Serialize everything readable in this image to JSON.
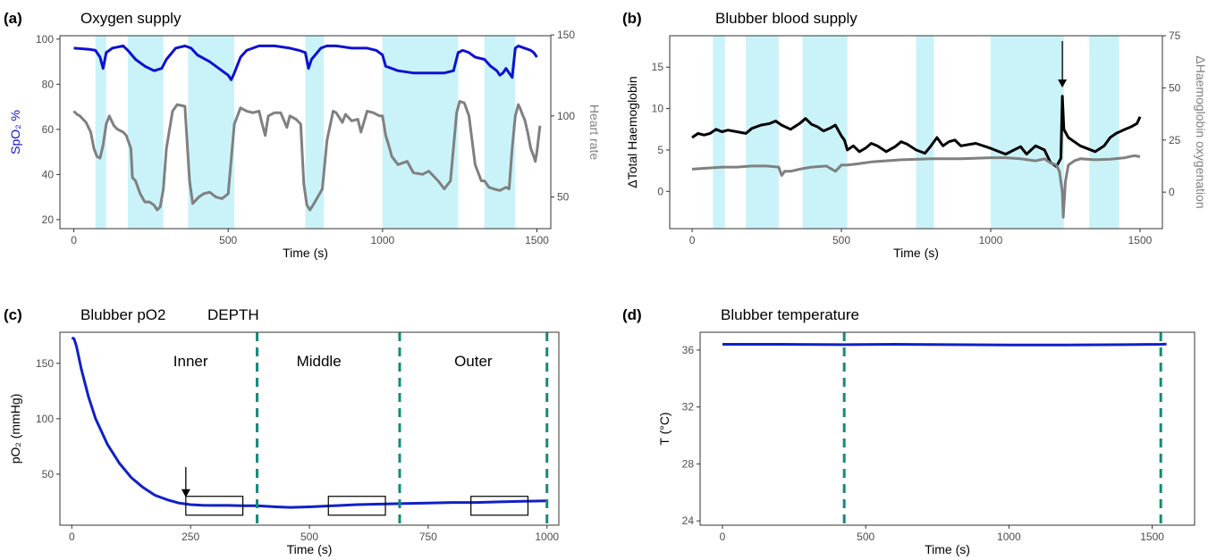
{
  "colors": {
    "spo2": "#1010d0",
    "hr": "#808080",
    "dive_shade": "#c9f3f8",
    "hb_total": "#000000",
    "hb_oxy": "#808080",
    "blubber_line": "#1020c8",
    "dashed": "#16897a"
  },
  "chart_data": [
    {
      "id": "a",
      "type": "line",
      "panel_label": "(a)",
      "title": "Oxygen supply",
      "xlabel": "Time (s)",
      "ylabel": "SpO₂ %",
      "y2label": "Heart rate",
      "xlim": [
        -45,
        1545
      ],
      "ylim": [
        16,
        101.5
      ],
      "y2lim": [
        30.5,
        149.5
      ],
      "xticks": [
        0,
        500,
        1000,
        1500
      ],
      "yticks": [
        20,
        40,
        60,
        80,
        100
      ],
      "y2ticks": [
        50,
        100,
        150
      ],
      "dive_periods": [
        [
          70,
          105
        ],
        [
          175,
          290
        ],
        [
          370,
          520
        ],
        [
          750,
          810
        ],
        [
          1000,
          1245
        ],
        [
          1330,
          1430
        ]
      ],
      "series": [
        {
          "axis": "left",
          "color_key": "spo2",
          "x": [
            0,
            50,
            70,
            85,
            95,
            105,
            125,
            160,
            175,
            200,
            230,
            260,
            285,
            300,
            330,
            360,
            380,
            400,
            440,
            480,
            500,
            510,
            520,
            540,
            560,
            600,
            650,
            700,
            730,
            750,
            760,
            770,
            800,
            820,
            850,
            900,
            950,
            980,
            1000,
            1010,
            1050,
            1100,
            1150,
            1200,
            1230,
            1245,
            1260,
            1280,
            1300,
            1330,
            1350,
            1370,
            1380,
            1390,
            1400,
            1420,
            1430,
            1440,
            1460,
            1480,
            1490,
            1500
          ],
          "y": [
            96,
            95.5,
            95,
            92,
            87,
            94,
            96,
            97,
            95,
            91,
            88,
            86,
            87,
            91,
            96,
            97,
            96,
            93,
            90,
            86,
            84,
            82,
            85,
            92,
            95,
            97,
            97,
            96,
            95,
            94,
            87,
            91,
            96,
            97,
            97,
            96,
            96,
            95,
            93,
            88,
            86,
            85,
            85,
            85,
            86,
            94,
            95,
            94,
            92,
            91,
            88,
            86,
            84,
            85,
            87,
            83,
            96,
            97,
            96,
            95,
            94,
            92
          ]
        },
        {
          "axis": "right",
          "color_key": "hr",
          "x": [
            0,
            10,
            20,
            40,
            55,
            65,
            75,
            85,
            95,
            105,
            115,
            130,
            140,
            160,
            170,
            185,
            190,
            200,
            215,
            230,
            245,
            260,
            270,
            280,
            290,
            300,
            320,
            335,
            360,
            375,
            385,
            395,
            405,
            420,
            440,
            460,
            480,
            500,
            520,
            540,
            560,
            580,
            600,
            610,
            620,
            630,
            650,
            670,
            690,
            700,
            720,
            735,
            745,
            755,
            765,
            775,
            790,
            805,
            820,
            840,
            850,
            870,
            880,
            900,
            920,
            930,
            950,
            970,
            990,
            1000,
            1010,
            1020,
            1030,
            1050,
            1080,
            1100,
            1130,
            1150,
            1180,
            1200,
            1220,
            1240,
            1250,
            1265,
            1280,
            1300,
            1320,
            1330,
            1345,
            1360,
            1380,
            1400,
            1410,
            1420,
            1430,
            1440,
            1445,
            1455,
            1460,
            1470,
            1480,
            1490,
            1495,
            1500,
            1505,
            1510
          ],
          "y": [
            103,
            101,
            100,
            96,
            90,
            80,
            75,
            74,
            82,
            95,
            100,
            94,
            92,
            90,
            88,
            80,
            62,
            60,
            52,
            47,
            47,
            45,
            42,
            44,
            55,
            80,
            103,
            107,
            106,
            60,
            46,
            48,
            50,
            52,
            53,
            50,
            49,
            52,
            95,
            105,
            103,
            102,
            103,
            95,
            88,
            100,
            102,
            102,
            93,
            100,
            98,
            95,
            58,
            45,
            42,
            45,
            50,
            55,
            85,
            103,
            102,
            96,
            101,
            97,
            98,
            90,
            103,
            102,
            100,
            100,
            88,
            82,
            75,
            70,
            72,
            65,
            64,
            66,
            60,
            55,
            60,
            102,
            109,
            108,
            100,
            70,
            60,
            60,
            56,
            55,
            54,
            56,
            55,
            80,
            100,
            107,
            105,
            100,
            98,
            90,
            80,
            75,
            72,
            78,
            86,
            94
          ]
        }
      ]
    },
    {
      "id": "b",
      "type": "line",
      "panel_label": "(b)",
      "title": "Blubber blood supply",
      "xlabel": "Time (s)",
      "ylabel": "ΔTotal Haemoglobin",
      "y2label": "ΔHaemoglobin oxygenation",
      "xlim": [
        -75,
        1575
      ],
      "ylim": [
        -4.5,
        18.8
      ],
      "y2lim": [
        -17.5,
        75
      ],
      "xticks": [
        0,
        500,
        1000,
        1500
      ],
      "yticks": [
        0,
        5,
        10,
        15
      ],
      "y2ticks": [
        0,
        25,
        50,
        75
      ],
      "dive_periods": [
        [
          70,
          110
        ],
        [
          180,
          290
        ],
        [
          370,
          520
        ],
        [
          750,
          810
        ],
        [
          1000,
          1245
        ],
        [
          1330,
          1430
        ]
      ],
      "arrow_at_x": 1240,
      "series": [
        {
          "axis": "left",
          "color_key": "hb_total",
          "x": [
            0,
            20,
            40,
            60,
            80,
            100,
            120,
            150,
            180,
            200,
            230,
            260,
            280,
            300,
            330,
            360,
            380,
            400,
            420,
            440,
            460,
            480,
            500,
            510,
            520,
            540,
            560,
            580,
            600,
            620,
            650,
            680,
            700,
            720,
            750,
            780,
            800,
            820,
            840,
            860,
            880,
            900,
            950,
            1000,
            1050,
            1100,
            1120,
            1150,
            1180,
            1200,
            1220,
            1235,
            1240,
            1245,
            1260,
            1280,
            1300,
            1350,
            1380,
            1400,
            1420,
            1450,
            1470,
            1490,
            1500
          ],
          "y": [
            6.5,
            7,
            6.8,
            7,
            7.5,
            7.2,
            7.4,
            7.2,
            7,
            7.6,
            8,
            8.2,
            8.5,
            8,
            7.5,
            8.2,
            8.8,
            8.1,
            7.8,
            7.3,
            7.6,
            8,
            6.7,
            6.2,
            5,
            5.5,
            4.8,
            5.2,
            5.8,
            5.5,
            4.8,
            5.4,
            6,
            5.7,
            5,
            4.6,
            5.5,
            6.5,
            5.5,
            6,
            6.2,
            5.5,
            5.8,
            5.2,
            4.5,
            5.4,
            4.5,
            5.5,
            5,
            3.5,
            3,
            4,
            11.5,
            7.5,
            6.5,
            6,
            5.5,
            4.8,
            5.5,
            6.5,
            7,
            7.5,
            7.8,
            8.2,
            9
          ]
        },
        {
          "axis": "right",
          "color_key": "hb_oxy",
          "x": [
            0,
            50,
            100,
            150,
            200,
            250,
            290,
            300,
            310,
            330,
            360,
            400,
            450,
            480,
            500,
            520,
            550,
            600,
            700,
            800,
            900,
            1000,
            1050,
            1100,
            1150,
            1180,
            1200,
            1220,
            1230,
            1240,
            1243,
            1250,
            1260,
            1280,
            1300,
            1350,
            1400,
            1450,
            1480,
            1500
          ],
          "y": [
            11,
            11.5,
            12,
            12,
            12.5,
            12.5,
            12,
            8,
            10,
            10,
            11,
            12,
            12.5,
            10,
            13,
            13,
            13.5,
            14.5,
            15.5,
            16,
            16,
            16.5,
            16.5,
            16,
            15,
            16,
            14,
            13,
            10,
            0,
            -12,
            5,
            13,
            15,
            16,
            15.5,
            15.8,
            16.5,
            17.5,
            17
          ]
        }
      ]
    },
    {
      "id": "c",
      "type": "line",
      "panel_label": "(c)",
      "title": "Blubber pO2",
      "subtitle": "DEPTH",
      "xlabel": "Time (s)",
      "ylabel": "pO₂ (mmHg)",
      "xlim": [
        -25,
        1025
      ],
      "ylim": [
        4,
        178
      ],
      "xticks": [
        0,
        250,
        500,
        750,
        1000
      ],
      "yticks": [
        50,
        100,
        150
      ],
      "depth_lines_x": [
        390,
        690,
        1000
      ],
      "depth_labels": [
        {
          "text": "Inner",
          "x": 250
        },
        {
          "text": "Middle",
          "x": 520
        },
        {
          "text": "Outer",
          "x": 845
        }
      ],
      "boxes": [
        [
          240,
          360
        ],
        [
          540,
          660
        ],
        [
          840,
          960
        ]
      ],
      "arrow_at_x": 240,
      "series": [
        {
          "color_key": "blubber_line",
          "x": [
            0,
            5,
            10,
            20,
            35,
            50,
            75,
            100,
            125,
            150,
            175,
            200,
            225,
            250,
            275,
            300,
            330,
            360,
            390,
            410,
            430,
            460,
            500,
            550,
            600,
            650,
            700,
            750,
            800,
            850,
            900,
            950,
            1000
          ],
          "y": [
            173,
            172,
            165,
            145,
            120,
            100,
            77,
            60,
            47,
            38,
            31,
            27,
            24,
            22.5,
            22,
            21.8,
            21.8,
            21.5,
            21.5,
            21,
            20.5,
            20,
            20.5,
            21.5,
            22.5,
            23,
            23.5,
            24,
            24.5,
            24.5,
            25,
            25.5,
            26
          ]
        }
      ]
    },
    {
      "id": "d",
      "type": "line",
      "panel_label": "(d)",
      "title": "Blubber temperature",
      "xlabel": "Time (s)",
      "ylabel": "T (°C)",
      "xlim": [
        -78,
        1648
      ],
      "ylim": [
        23.7,
        37.25
      ],
      "xticks": [
        0,
        500,
        1000,
        1500
      ],
      "yticks": [
        24,
        28,
        32,
        36
      ],
      "depth_lines_x": [
        425,
        1530
      ],
      "series": [
        {
          "color_key": "blubber_line",
          "x": [
            0,
            200,
            425,
            600,
            800,
            1000,
            1200,
            1400,
            1530,
            1550
          ],
          "y": [
            36.4,
            36.4,
            36.38,
            36.4,
            36.38,
            36.36,
            36.36,
            36.38,
            36.4,
            36.42
          ]
        }
      ]
    }
  ]
}
